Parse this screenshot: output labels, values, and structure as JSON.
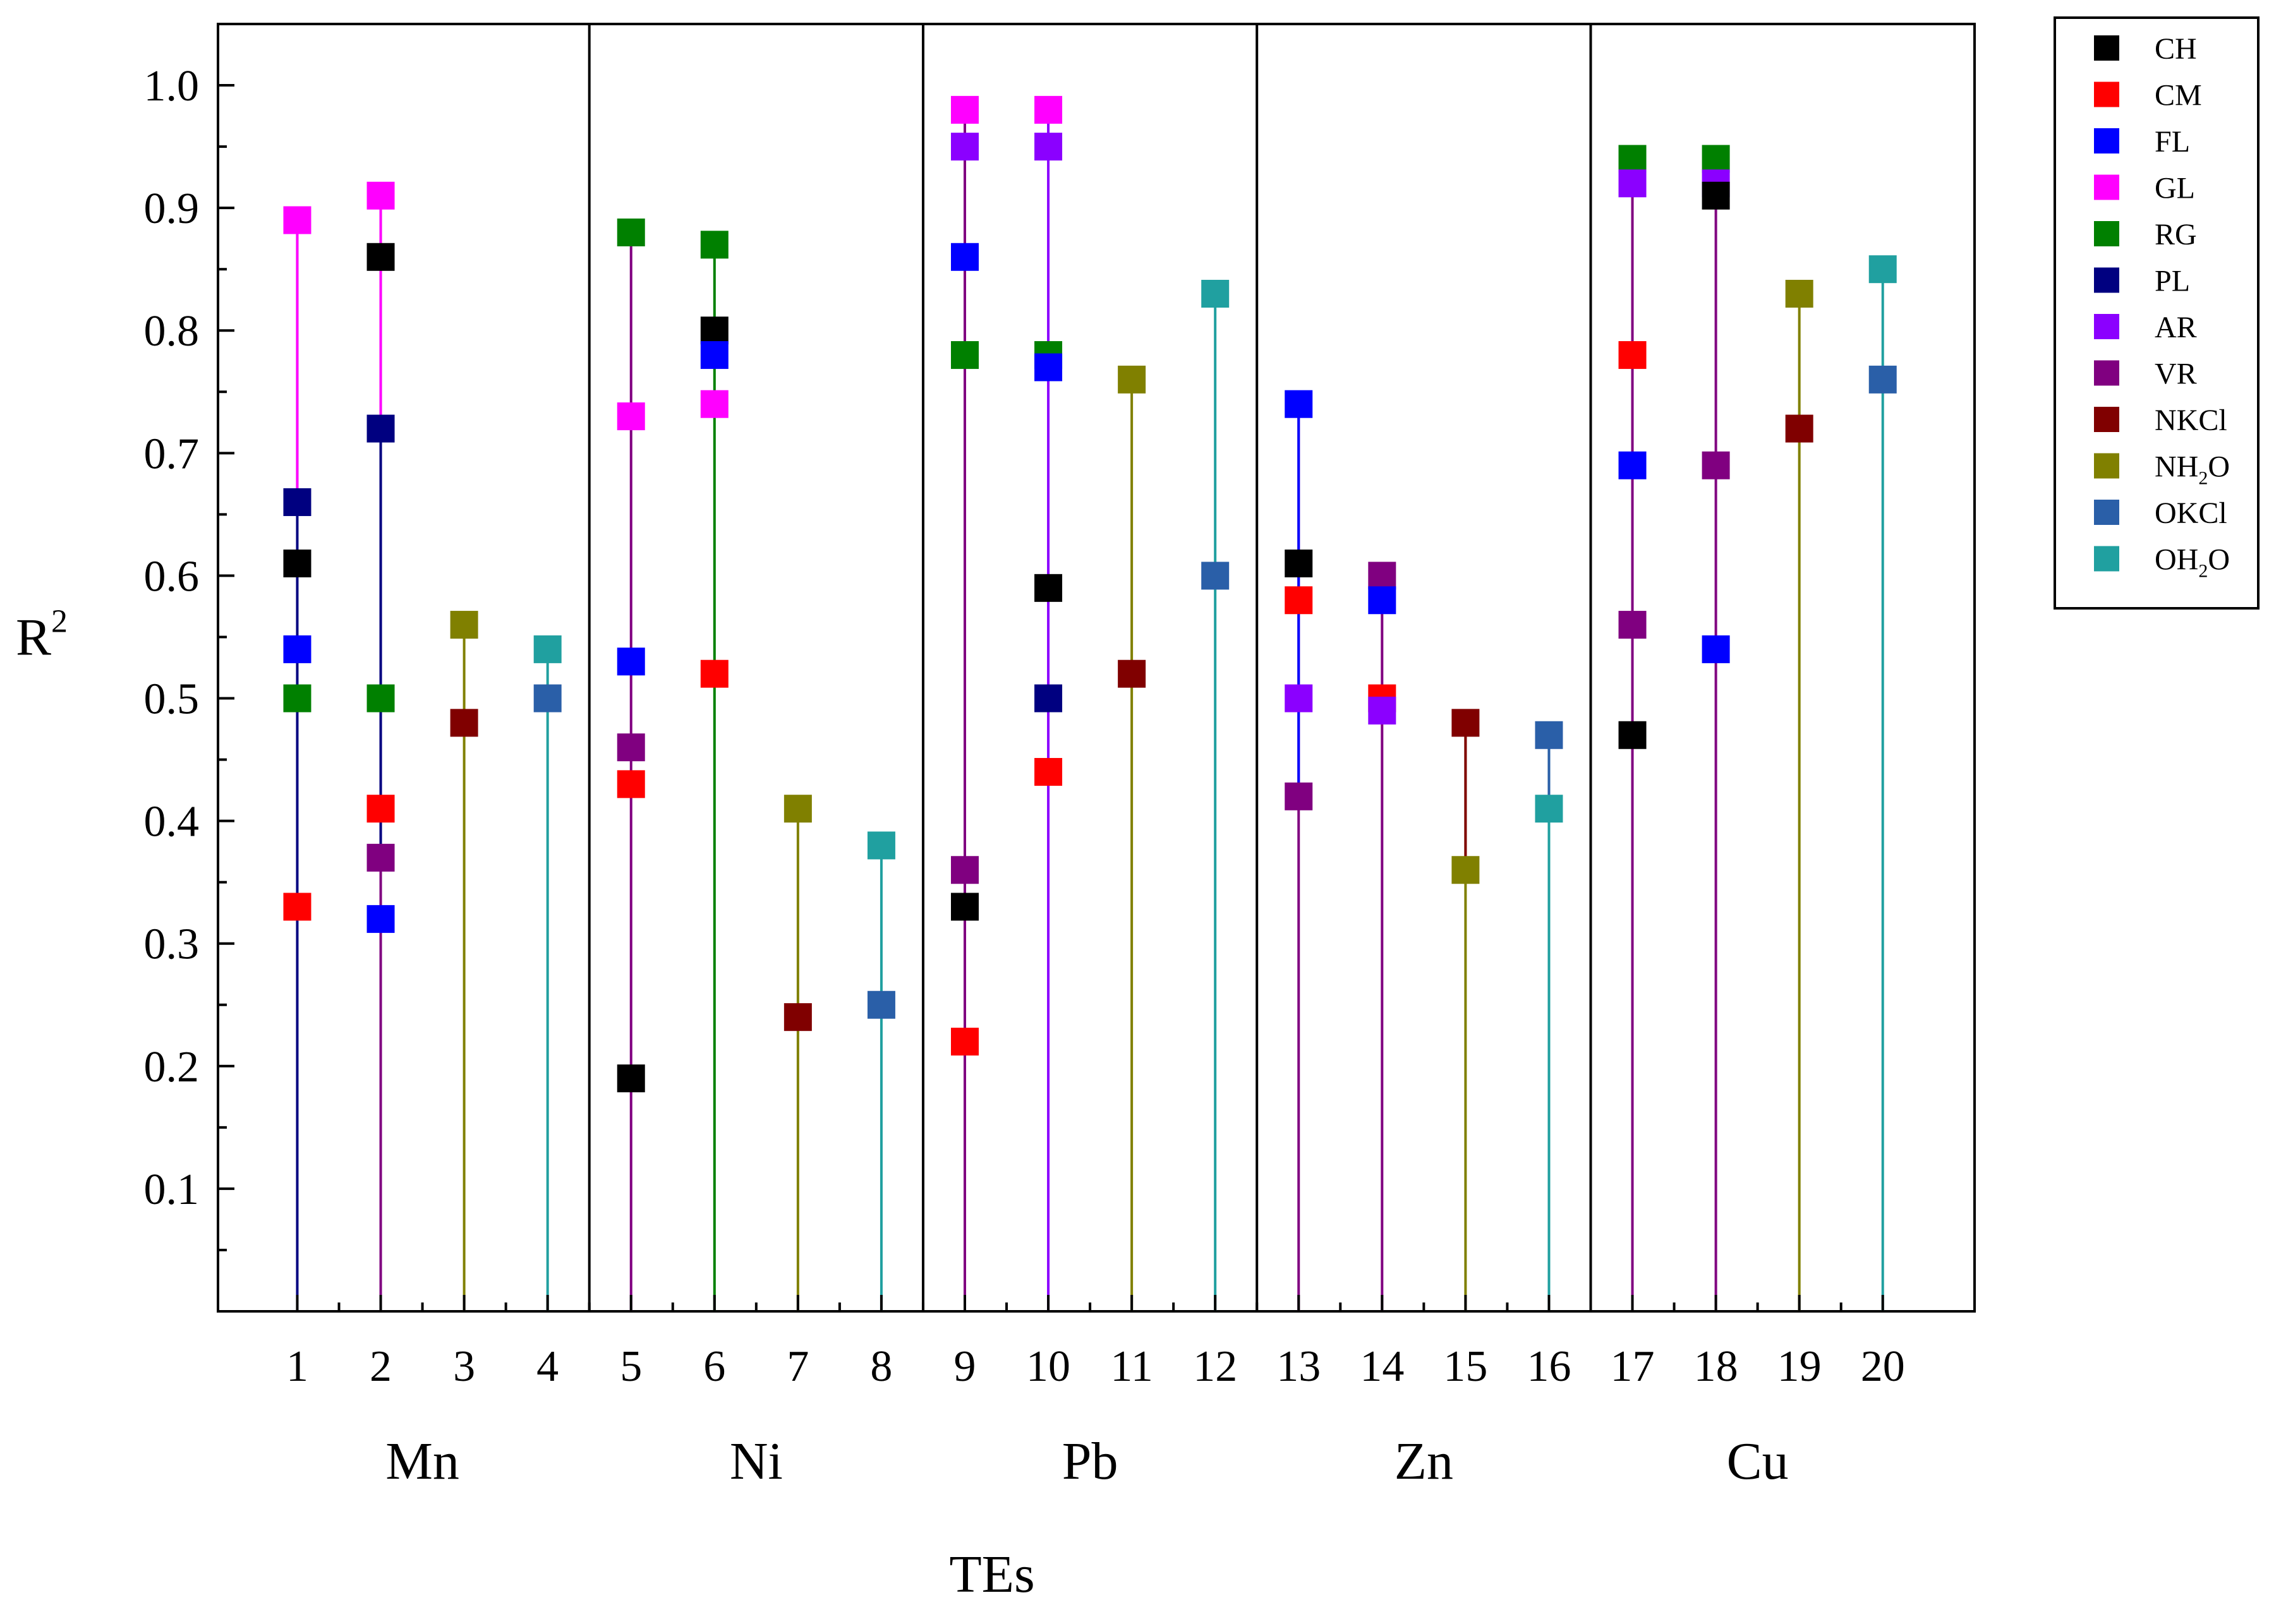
{
  "chart_data": {
    "type": "scatter",
    "xlabel": "TEs",
    "ylabel": "R",
    "ylabel_superscript": "2",
    "ylim": [
      0,
      1.05
    ],
    "xlim": [
      0.05,
      21.1
    ],
    "y_ticks": [
      "0.1",
      "0.2",
      "0.3",
      "0.4",
      "0.5",
      "0.6",
      "0.7",
      "0.8",
      "0.9",
      "1.0"
    ],
    "x_ticks": [
      "1",
      "2",
      "3",
      "4",
      "5",
      "6",
      "7",
      "8",
      "9",
      "10",
      "11",
      "12",
      "13",
      "14",
      "15",
      "16",
      "17",
      "18",
      "19",
      "20"
    ],
    "groups": [
      {
        "label": "Mn",
        "from": 1,
        "to": 4
      },
      {
        "label": "Ni",
        "from": 5,
        "to": 8
      },
      {
        "label": "Pb",
        "from": 9,
        "to": 12
      },
      {
        "label": "Zn",
        "from": 13,
        "to": 16
      },
      {
        "label": "Cu",
        "from": 17,
        "to": 20
      }
    ],
    "group_separators": [
      4.5,
      8.5,
      12.5,
      16.5
    ],
    "legend": [
      {
        "key": "CH",
        "label": "CH",
        "sub": "",
        "suffix": "",
        "color": "#000000"
      },
      {
        "key": "CM",
        "label": "CM",
        "sub": "",
        "suffix": "",
        "color": "#ff0000"
      },
      {
        "key": "FL",
        "label": "FL",
        "sub": "",
        "suffix": "",
        "color": "#0000ff"
      },
      {
        "key": "GL",
        "label": "GL",
        "sub": "",
        "suffix": "",
        "color": "#ff00ff"
      },
      {
        "key": "RG",
        "label": "RG",
        "sub": "",
        "suffix": "",
        "color": "#008000"
      },
      {
        "key": "PL",
        "label": "PL",
        "sub": "",
        "suffix": "",
        "color": "#000080"
      },
      {
        "key": "AR",
        "label": "AR",
        "sub": "",
        "suffix": "",
        "color": "#8b00ff"
      },
      {
        "key": "VR",
        "label": "VR",
        "sub": "",
        "suffix": "",
        "color": "#800080"
      },
      {
        "key": "NKCl",
        "label": "NKCl",
        "sub": "",
        "suffix": "",
        "color": "#800000"
      },
      {
        "key": "NH2O",
        "label": "NH",
        "sub": "2",
        "suffix": "O",
        "color": "#808000"
      },
      {
        "key": "OKCl",
        "label": "OKCl",
        "sub": "",
        "suffix": "",
        "color": "#2a5fa8"
      },
      {
        "key": "OH2O",
        "label": "OH",
        "sub": "2",
        "suffix": "O",
        "color": "#20a0a0"
      }
    ],
    "stems": [
      {
        "x": 1,
        "key": "PL"
      },
      {
        "x": 2,
        "key": "VR"
      },
      {
        "x": 3,
        "key": "NH2O"
      },
      {
        "x": 4,
        "key": "OH2O"
      },
      {
        "x": 5,
        "key": "VR"
      },
      {
        "x": 6,
        "key": "RG"
      },
      {
        "x": 7,
        "key": "NH2O"
      },
      {
        "x": 8,
        "key": "OH2O"
      },
      {
        "x": 9,
        "key": "VR"
      },
      {
        "x": 10,
        "key": "AR"
      },
      {
        "x": 11,
        "key": "NH2O"
      },
      {
        "x": 12,
        "key": "OH2O"
      },
      {
        "x": 13,
        "key": "VR"
      },
      {
        "x": 14,
        "key": "VR"
      },
      {
        "x": 15,
        "key": "NH2O"
      },
      {
        "x": 16,
        "key": "OH2O"
      },
      {
        "x": 17,
        "key": "VR"
      },
      {
        "x": 18,
        "key": "VR"
      },
      {
        "x": 19,
        "key": "NH2O"
      },
      {
        "x": 20,
        "key": "OH2O"
      }
    ],
    "segments": [
      {
        "x": 1,
        "from": 0.66,
        "to": 0.89,
        "key": "GL"
      },
      {
        "x": 2,
        "from": 0.72,
        "to": 0.91,
        "key": "GL"
      },
      {
        "x": 2,
        "from": 0.37,
        "to": 0.72,
        "key": "PL"
      },
      {
        "x": 15,
        "from": 0.48,
        "to": 0.36,
        "key": "NKCl"
      },
      {
        "x": 16,
        "from": 0.47,
        "to": 0.41,
        "key": "OKCl"
      },
      {
        "x": 13,
        "from": 0.74,
        "to": 0.42,
        "key": "FL"
      }
    ],
    "points": [
      {
        "x": 1,
        "y": 0.89,
        "key": "GL"
      },
      {
        "x": 1,
        "y": 0.66,
        "key": "PL"
      },
      {
        "x": 1,
        "y": 0.61,
        "key": "CH"
      },
      {
        "x": 1,
        "y": 0.54,
        "key": "FL"
      },
      {
        "x": 1,
        "y": 0.5,
        "key": "RG"
      },
      {
        "x": 1,
        "y": 0.33,
        "key": "CM"
      },
      {
        "x": 2,
        "y": 0.91,
        "key": "GL"
      },
      {
        "x": 2,
        "y": 0.86,
        "key": "CH"
      },
      {
        "x": 2,
        "y": 0.72,
        "key": "PL"
      },
      {
        "x": 2,
        "y": 0.5,
        "key": "RG"
      },
      {
        "x": 2,
        "y": 0.41,
        "key": "CM"
      },
      {
        "x": 2,
        "y": 0.37,
        "key": "VR"
      },
      {
        "x": 2,
        "y": 0.32,
        "key": "FL"
      },
      {
        "x": 3,
        "y": 0.56,
        "key": "NH2O"
      },
      {
        "x": 3,
        "y": 0.48,
        "key": "NKCl"
      },
      {
        "x": 4,
        "y": 0.54,
        "key": "OH2O"
      },
      {
        "x": 4,
        "y": 0.5,
        "key": "OKCl"
      },
      {
        "x": 5,
        "y": 0.88,
        "key": "RG"
      },
      {
        "x": 5,
        "y": 0.73,
        "key": "GL"
      },
      {
        "x": 5,
        "y": 0.53,
        "key": "FL"
      },
      {
        "x": 5,
        "y": 0.46,
        "key": "VR"
      },
      {
        "x": 5,
        "y": 0.43,
        "key": "CM"
      },
      {
        "x": 5,
        "y": 0.19,
        "key": "CH"
      },
      {
        "x": 6,
        "y": 0.87,
        "key": "RG"
      },
      {
        "x": 6,
        "y": 0.8,
        "key": "CH"
      },
      {
        "x": 6,
        "y": 0.78,
        "key": "FL"
      },
      {
        "x": 6,
        "y": 0.74,
        "key": "GL"
      },
      {
        "x": 6,
        "y": 0.52,
        "key": "CM"
      },
      {
        "x": 7,
        "y": 0.41,
        "key": "NH2O"
      },
      {
        "x": 7,
        "y": 0.24,
        "key": "NKCl"
      },
      {
        "x": 8,
        "y": 0.38,
        "key": "OH2O"
      },
      {
        "x": 8,
        "y": 0.25,
        "key": "OKCl"
      },
      {
        "x": 9,
        "y": 0.98,
        "key": "GL"
      },
      {
        "x": 9,
        "y": 0.95,
        "key": "AR"
      },
      {
        "x": 9,
        "y": 0.86,
        "key": "FL"
      },
      {
        "x": 9,
        "y": 0.78,
        "key": "RG"
      },
      {
        "x": 9,
        "y": 0.36,
        "key": "VR"
      },
      {
        "x": 9,
        "y": 0.33,
        "key": "CH"
      },
      {
        "x": 9,
        "y": 0.22,
        "key": "CM"
      },
      {
        "x": 10,
        "y": 0.98,
        "key": "GL"
      },
      {
        "x": 10,
        "y": 0.95,
        "key": "AR"
      },
      {
        "x": 10,
        "y": 0.78,
        "key": "RG"
      },
      {
        "x": 10,
        "y": 0.77,
        "key": "FL"
      },
      {
        "x": 10,
        "y": 0.59,
        "key": "CH"
      },
      {
        "x": 10,
        "y": 0.5,
        "key": "PL"
      },
      {
        "x": 10,
        "y": 0.44,
        "key": "CM"
      },
      {
        "x": 11,
        "y": 0.76,
        "key": "NH2O"
      },
      {
        "x": 11,
        "y": 0.52,
        "key": "NKCl"
      },
      {
        "x": 12,
        "y": 0.83,
        "key": "OH2O"
      },
      {
        "x": 12,
        "y": 0.6,
        "key": "OKCl"
      },
      {
        "x": 13,
        "y": 0.74,
        "key": "FL"
      },
      {
        "x": 13,
        "y": 0.61,
        "key": "CH"
      },
      {
        "x": 13,
        "y": 0.58,
        "key": "CM"
      },
      {
        "x": 13,
        "y": 0.5,
        "key": "AR"
      },
      {
        "x": 13,
        "y": 0.42,
        "key": "VR"
      },
      {
        "x": 14,
        "y": 0.6,
        "key": "VR"
      },
      {
        "x": 14,
        "y": 0.58,
        "key": "FL"
      },
      {
        "x": 14,
        "y": 0.5,
        "key": "CM"
      },
      {
        "x": 14,
        "y": 0.49,
        "key": "AR"
      },
      {
        "x": 15,
        "y": 0.48,
        "key": "NKCl"
      },
      {
        "x": 15,
        "y": 0.36,
        "key": "NH2O"
      },
      {
        "x": 16,
        "y": 0.47,
        "key": "OKCl"
      },
      {
        "x": 16,
        "y": 0.41,
        "key": "OH2O"
      },
      {
        "x": 17,
        "y": 0.94,
        "key": "RG"
      },
      {
        "x": 17,
        "y": 0.92,
        "key": "AR"
      },
      {
        "x": 17,
        "y": 0.78,
        "key": "CM"
      },
      {
        "x": 17,
        "y": 0.69,
        "key": "FL"
      },
      {
        "x": 17,
        "y": 0.56,
        "key": "VR"
      },
      {
        "x": 17,
        "y": 0.47,
        "key": "CH"
      },
      {
        "x": 18,
        "y": 0.94,
        "key": "RG"
      },
      {
        "x": 18,
        "y": 0.92,
        "key": "AR"
      },
      {
        "x": 18,
        "y": 0.91,
        "key": "CH"
      },
      {
        "x": 18,
        "y": 0.69,
        "key": "VR"
      },
      {
        "x": 18,
        "y": 0.54,
        "key": "FL"
      },
      {
        "x": 19,
        "y": 0.83,
        "key": "NH2O"
      },
      {
        "x": 19,
        "y": 0.72,
        "key": "NKCl"
      },
      {
        "x": 20,
        "y": 0.85,
        "key": "OH2O"
      },
      {
        "x": 20,
        "y": 0.76,
        "key": "OKCl"
      }
    ]
  }
}
